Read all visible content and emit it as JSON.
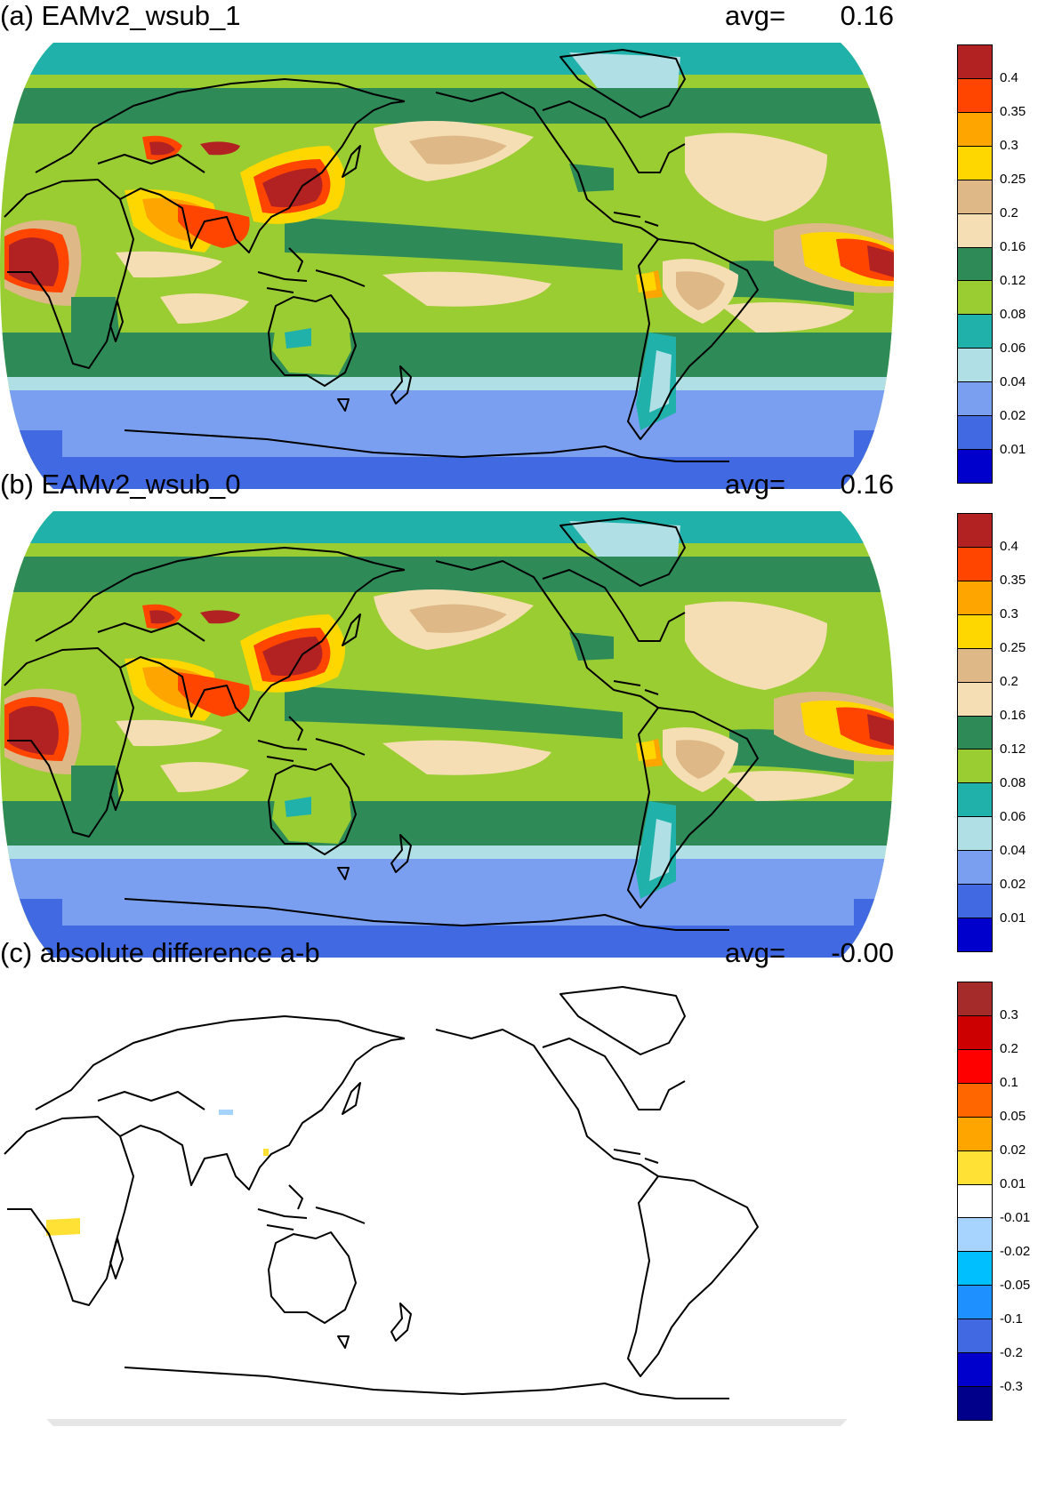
{
  "panels": [
    {
      "title": "(a) EAMv2_wsub_1",
      "avg_label": "avg=",
      "avg_value": "0.16",
      "kind": "field",
      "colorbar": {
        "labels": [
          "0.4",
          "0.35",
          "0.3",
          "0.25",
          "0.2",
          "0.16",
          "0.12",
          "0.08",
          "0.06",
          "0.04",
          "0.02",
          "0.01"
        ],
        "colors": [
          "#b22222",
          "#ff4500",
          "#ffa500",
          "#ffd700",
          "#deb887",
          "#f5deb3",
          "#2e8b57",
          "#9acd32",
          "#20b2aa",
          "#b0e0e6",
          "#7b9ff0",
          "#4169e1",
          "#0000cd"
        ]
      }
    },
    {
      "title": "(b) EAMv2_wsub_0",
      "avg_label": "avg=",
      "avg_value": "0.16",
      "kind": "field",
      "colorbar": {
        "labels": [
          "0.4",
          "0.35",
          "0.3",
          "0.25",
          "0.2",
          "0.16",
          "0.12",
          "0.08",
          "0.06",
          "0.04",
          "0.02",
          "0.01"
        ],
        "colors": [
          "#b22222",
          "#ff4500",
          "#ffa500",
          "#ffd700",
          "#deb887",
          "#f5deb3",
          "#2e8b57",
          "#9acd32",
          "#20b2aa",
          "#b0e0e6",
          "#7b9ff0",
          "#4169e1",
          "#0000cd"
        ]
      }
    },
    {
      "title": "(c) absolute difference a-b",
      "avg_label": "avg=",
      "avg_value": "-0.00",
      "kind": "difference",
      "colorbar": {
        "labels": [
          "0.3",
          "0.2",
          "0.1",
          "0.05",
          "0.02",
          "0.01",
          "-0.01",
          "-0.02",
          "-0.05",
          "-0.1",
          "-0.2",
          "-0.3"
        ],
        "colors": [
          "#a52a2a",
          "#cc0000",
          "#ff0000",
          "#ff6600",
          "#ffa500",
          "#ffe135",
          "#ffffff",
          "#a6d4ff",
          "#00bfff",
          "#1e90ff",
          "#4169e1",
          "#0000cd",
          "#00008b"
        ]
      }
    }
  ]
}
